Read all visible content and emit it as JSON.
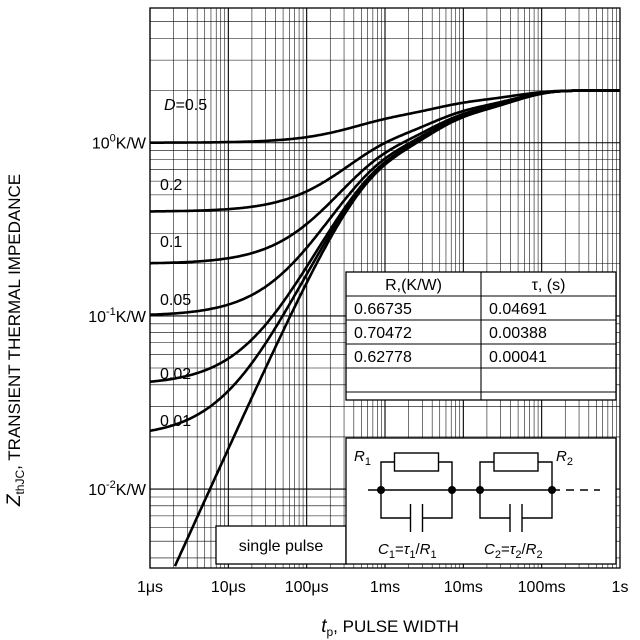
{
  "chart_data": {
    "type": "line",
    "xscale": "log",
    "yscale": "log",
    "xlim": [
      1e-06,
      1
    ],
    "ylim": [
      0.0035,
      6
    ],
    "grid": "on",
    "xlabel_main": "t",
    "xlabel_sub": "p",
    "xlabel_rest": ", PULSE WIDTH",
    "ylabel_main": "Z",
    "ylabel_sub": "thJC",
    "ylabel_rest": ", TRANSIENT THERMAL IMPEDANCE",
    "x_ticks": [
      {
        "value": 1e-06,
        "label": "1μs"
      },
      {
        "value": 1e-05,
        "label": "10μs"
      },
      {
        "value": 0.0001,
        "label": "100μs"
      },
      {
        "value": 0.001,
        "label": "1ms"
      },
      {
        "value": 0.01,
        "label": "10ms"
      },
      {
        "value": 0.1,
        "label": "100ms"
      },
      {
        "value": 1,
        "label": "1s"
      }
    ],
    "y_ticks": [
      {
        "value": 1,
        "base": "10",
        "exp": "0",
        "unit": "K/W"
      },
      {
        "value": 0.1,
        "base": "10",
        "exp": "-1",
        "unit": "K/W"
      },
      {
        "value": 0.01,
        "base": "10",
        "exp": "-2",
        "unit": "K/W"
      }
    ],
    "series": [
      {
        "name": "D=0.5",
        "label_var": "D",
        "label_val": "=0.5",
        "duty": 0.5
      },
      {
        "name": "0.2",
        "duty": 0.2
      },
      {
        "name": "0.1",
        "duty": 0.1
      },
      {
        "name": "0.05",
        "duty": 0.05
      },
      {
        "name": "0.02",
        "duty": 0.02
      },
      {
        "name": "0.01",
        "duty": 0.01
      },
      {
        "name": "single pulse",
        "duty": 0
      }
    ],
    "foster_table": {
      "headers": [
        "R,(K/W)",
        "τ, (s)"
      ],
      "rows": [
        [
          "0.66735",
          "0.04691"
        ],
        [
          "0.70472",
          "0.00388"
        ],
        [
          "0.62778",
          "0.00041"
        ]
      ]
    },
    "network": {
      "r1": "R1",
      "r2": "R2",
      "c1": "C1=τ1/R1",
      "c2": "C2=τ2/R2"
    }
  }
}
